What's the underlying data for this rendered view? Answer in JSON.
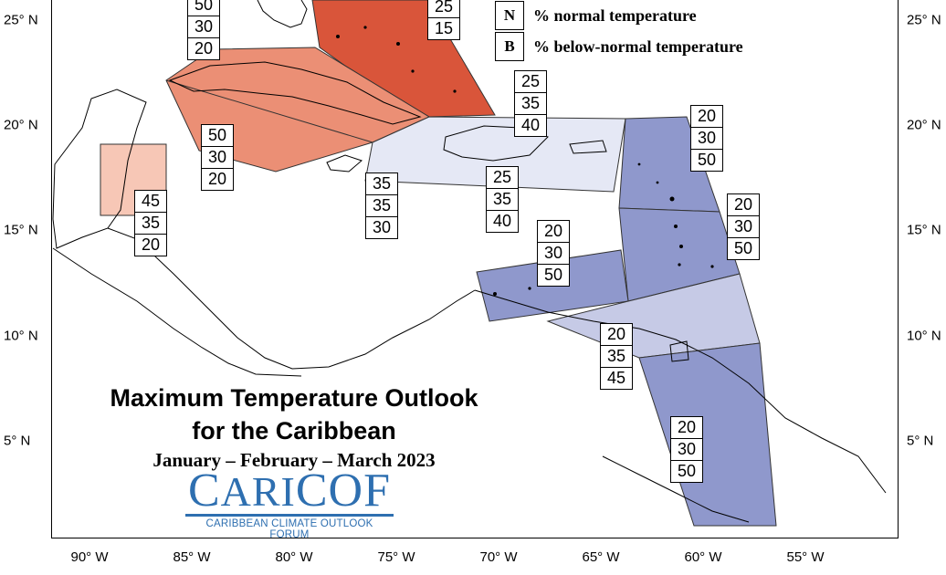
{
  "title": {
    "line1": "Maximum Temperature Outlook",
    "line2": "for the Caribbean",
    "period": "January – February – March 2023"
  },
  "logo": {
    "wordmark_first": "C",
    "wordmark_mid": "ARI",
    "wordmark_last": "COF",
    "subtitle": "CARIBBEAN CLIMATE OUTLOOK FORUM",
    "color": "#2e6fb0"
  },
  "legend": [
    {
      "key": "N",
      "text": "% normal temperature"
    },
    {
      "key": "B",
      "text": "% below-normal temperature"
    }
  ],
  "axes": {
    "lon_ticks": [
      "90° W",
      "85° W",
      "80° W",
      "75° W",
      "70° W",
      "65° W",
      "60° W",
      "55° W"
    ],
    "lat_ticks": [
      "25° N",
      "20° N",
      "15° N",
      "10° N",
      "5° N"
    ]
  },
  "colors": {
    "above_strong": "#d9553a",
    "above_moderate": "#eb8f75",
    "above_light": "#f7c7b6",
    "below_light_pale": "#e5e8f5",
    "below_light": "#c6cae6",
    "below_moderate": "#8f98cc"
  },
  "probability_boxes": [
    {
      "id": "bahamas-nw",
      "values": [
        "50",
        "30",
        "20"
      ]
    },
    {
      "id": "bahamas-se",
      "values": [
        "25",
        "15"
      ]
    },
    {
      "id": "cuba-west",
      "values": [
        "50",
        "30",
        "20"
      ]
    },
    {
      "id": "belize",
      "values": [
        "45",
        "35",
        "20"
      ]
    },
    {
      "id": "jamaica",
      "values": [
        "35",
        "35",
        "30"
      ]
    },
    {
      "id": "hispaniola-north",
      "values": [
        "25",
        "35",
        "40"
      ]
    },
    {
      "id": "hispaniola-south",
      "values": [
        "25",
        "35",
        "40"
      ]
    },
    {
      "id": "leeward-islands",
      "values": [
        "20",
        "30",
        "50"
      ]
    },
    {
      "id": "windward-islands",
      "values": [
        "20",
        "30",
        "50"
      ]
    },
    {
      "id": "caribbean-south",
      "values": [
        "20",
        "30",
        "50"
      ]
    },
    {
      "id": "trinidad",
      "values": [
        "20",
        "35",
        "45"
      ]
    },
    {
      "id": "guianas",
      "values": [
        "20",
        "30",
        "50"
      ]
    }
  ]
}
